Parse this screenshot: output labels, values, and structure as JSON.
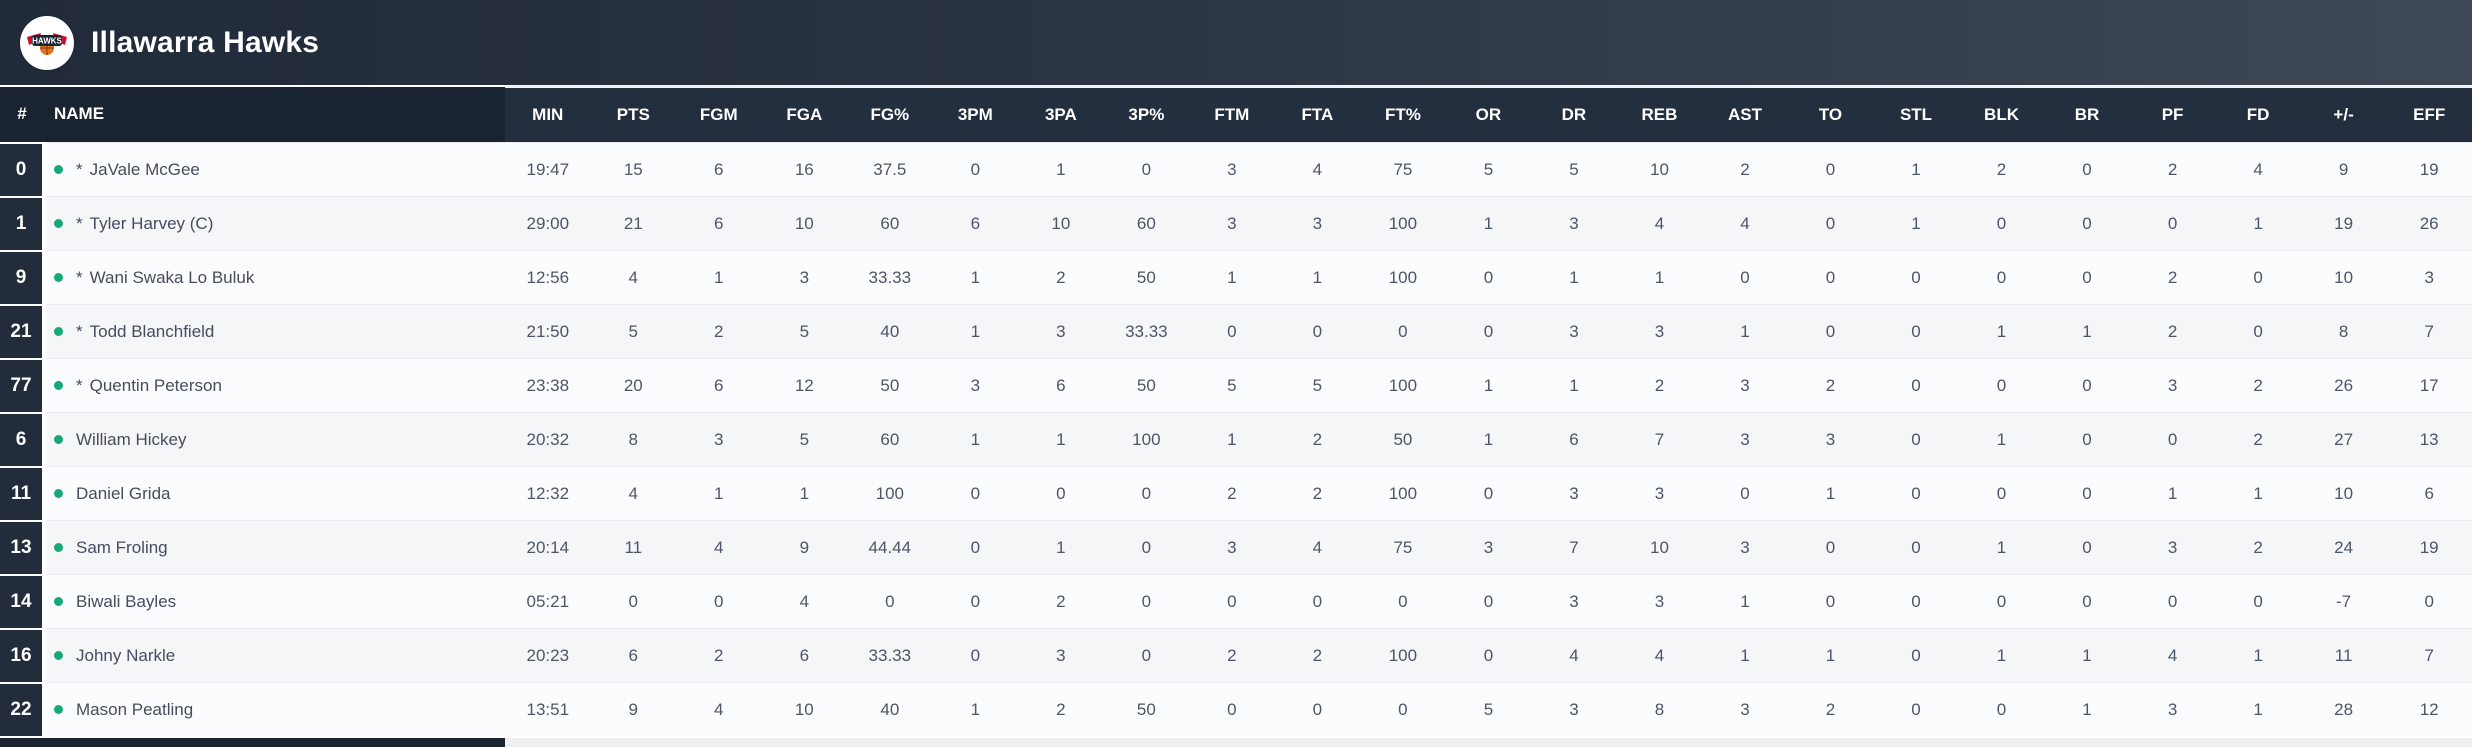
{
  "team": {
    "name": "Illawarra Hawks",
    "logo_label": "HAWKS"
  },
  "colors": {
    "topbar_left": "#212a39",
    "topbar_right": "#3e4857",
    "header_dark": "#1a2332",
    "header_stats": "#232e3e",
    "number_cell": "#222c3b",
    "row_even": "#f4f6f8",
    "row_odd": "#fbfcfd",
    "active_dot_green": "#17a878",
    "text_gray": "#4d5666"
  },
  "table": {
    "starter_marker": "*",
    "columns": [
      "#",
      "NAME",
      "MIN",
      "PTS",
      "FGM",
      "FGA",
      "FG%",
      "3PM",
      "3PA",
      "3P%",
      "FTM",
      "FTA",
      "FT%",
      "OR",
      "DR",
      "REB",
      "AST",
      "TO",
      "STL",
      "BLK",
      "BR",
      "PF",
      "FD",
      "+/-",
      "EFF"
    ],
    "players": [
      {
        "number": "0",
        "starter": true,
        "name": "JaVale McGee",
        "stats": [
          "19:47",
          "15",
          "6",
          "16",
          "37.5",
          "0",
          "1",
          "0",
          "3",
          "4",
          "75",
          "5",
          "5",
          "10",
          "2",
          "0",
          "1",
          "2",
          "0",
          "2",
          "4",
          "9",
          "19"
        ]
      },
      {
        "number": "1",
        "starter": true,
        "name": "Tyler Harvey (C)",
        "stats": [
          "29:00",
          "21",
          "6",
          "10",
          "60",
          "6",
          "10",
          "60",
          "3",
          "3",
          "100",
          "1",
          "3",
          "4",
          "4",
          "0",
          "1",
          "0",
          "0",
          "0",
          "1",
          "19",
          "26"
        ]
      },
      {
        "number": "9",
        "starter": true,
        "name": "Wani Swaka Lo Buluk",
        "stats": [
          "12:56",
          "4",
          "1",
          "3",
          "33.33",
          "1",
          "2",
          "50",
          "1",
          "1",
          "100",
          "0",
          "1",
          "1",
          "0",
          "0",
          "0",
          "0",
          "0",
          "2",
          "0",
          "10",
          "3"
        ]
      },
      {
        "number": "21",
        "starter": true,
        "name": "Todd Blanchfield",
        "stats": [
          "21:50",
          "5",
          "2",
          "5",
          "40",
          "1",
          "3",
          "33.33",
          "0",
          "0",
          "0",
          "0",
          "3",
          "3",
          "1",
          "0",
          "0",
          "1",
          "1",
          "2",
          "0",
          "8",
          "7"
        ]
      },
      {
        "number": "77",
        "starter": true,
        "name": "Quentin Peterson",
        "stats": [
          "23:38",
          "20",
          "6",
          "12",
          "50",
          "3",
          "6",
          "50",
          "5",
          "5",
          "100",
          "1",
          "1",
          "2",
          "3",
          "2",
          "0",
          "0",
          "0",
          "3",
          "2",
          "26",
          "17"
        ]
      },
      {
        "number": "6",
        "starter": false,
        "name": "William Hickey",
        "stats": [
          "20:32",
          "8",
          "3",
          "5",
          "60",
          "1",
          "1",
          "100",
          "1",
          "2",
          "50",
          "1",
          "6",
          "7",
          "3",
          "3",
          "0",
          "1",
          "0",
          "0",
          "2",
          "27",
          "13"
        ]
      },
      {
        "number": "11",
        "starter": false,
        "name": "Daniel Grida",
        "stats": [
          "12:32",
          "4",
          "1",
          "1",
          "100",
          "0",
          "0",
          "0",
          "2",
          "2",
          "100",
          "0",
          "3",
          "3",
          "0",
          "1",
          "0",
          "0",
          "0",
          "1",
          "1",
          "10",
          "6"
        ]
      },
      {
        "number": "13",
        "starter": false,
        "name": "Sam Froling",
        "stats": [
          "20:14",
          "11",
          "4",
          "9",
          "44.44",
          "0",
          "1",
          "0",
          "3",
          "4",
          "75",
          "3",
          "7",
          "10",
          "3",
          "0",
          "0",
          "1",
          "0",
          "3",
          "2",
          "24",
          "19"
        ]
      },
      {
        "number": "14",
        "starter": false,
        "name": "Biwali Bayles",
        "stats": [
          "05:21",
          "0",
          "0",
          "4",
          "0",
          "0",
          "2",
          "0",
          "0",
          "0",
          "0",
          "0",
          "3",
          "3",
          "1",
          "0",
          "0",
          "0",
          "0",
          "0",
          "0",
          "-7",
          "0"
        ]
      },
      {
        "number": "16",
        "starter": false,
        "name": "Johny Narkle",
        "stats": [
          "20:23",
          "6",
          "2",
          "6",
          "33.33",
          "0",
          "3",
          "0",
          "2",
          "2",
          "100",
          "0",
          "4",
          "4",
          "1",
          "1",
          "0",
          "1",
          "1",
          "4",
          "1",
          "11",
          "7"
        ]
      },
      {
        "number": "22",
        "starter": false,
        "name": "Mason Peatling",
        "stats": [
          "13:51",
          "9",
          "4",
          "10",
          "40",
          "1",
          "2",
          "50",
          "0",
          "0",
          "0",
          "5",
          "3",
          "8",
          "3",
          "2",
          "0",
          "0",
          "1",
          "3",
          "1",
          "28",
          "12"
        ]
      }
    ]
  }
}
